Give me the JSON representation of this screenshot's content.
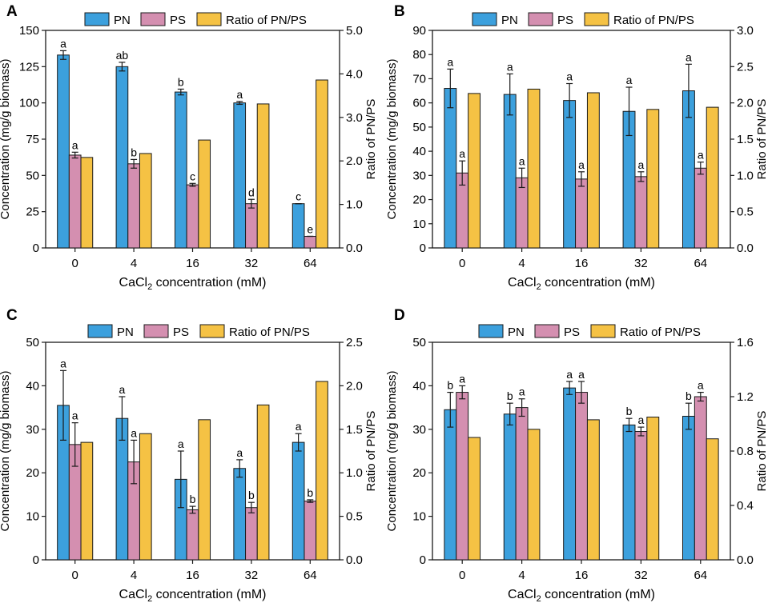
{
  "colors": {
    "PN": "#3ca0dd",
    "PS": "#d48fb0",
    "ratio": "#f5c244",
    "stroke": "#1a1a1a"
  },
  "chart_data": [
    {
      "type": "bar",
      "panel_label": "A",
      "legend": [
        "PN",
        "PS",
        "Ratio of PN/PS"
      ],
      "xlabel": {
        "main": "CaCl",
        "sub": "2",
        "rest": " concentration (mM)"
      },
      "ylabel": "Concentration (mg/g biomass)",
      "y2label": "Ratio of PN/PS",
      "categories": [
        "0",
        "4",
        "16",
        "32",
        "64"
      ],
      "ylim": [
        0,
        150
      ],
      "yticks": [
        "0",
        "25",
        "50",
        "75",
        "100",
        "125",
        "150"
      ],
      "y2lim": [
        0,
        5.0
      ],
      "y2ticks": [
        "0.0",
        "1.0",
        "2.0",
        "3.0",
        "4.0",
        "5.0"
      ],
      "series": [
        {
          "name": "PN",
          "values": [
            133,
            125,
            107.5,
            100,
            30.5
          ],
          "errors": [
            3,
            3,
            2,
            1,
            0
          ],
          "letters": [
            "a",
            "ab",
            "b",
            "a",
            "c"
          ]
        },
        {
          "name": "PS",
          "values": [
            64,
            58,
            43.5,
            30.5,
            8
          ],
          "errors": [
            2,
            3,
            1,
            3,
            0
          ],
          "letters": [
            "a",
            "b",
            "c",
            "d",
            "e"
          ]
        },
        {
          "name": "Ratio of PN/PS",
          "axis": "right",
          "values": [
            2.08,
            2.17,
            2.48,
            3.31,
            3.86
          ]
        }
      ]
    },
    {
      "type": "bar",
      "panel_label": "B",
      "legend": [
        "PN",
        "PS",
        "Ratio of PN/PS"
      ],
      "xlabel": {
        "main": "CaCl",
        "sub": "2",
        "rest": " concentration (mM)"
      },
      "ylabel": "Concentration (mg/g biomass)",
      "y2label": "Ratio of PN/PS",
      "categories": [
        "0",
        "4",
        "16",
        "32",
        "64"
      ],
      "ylim": [
        0,
        90
      ],
      "yticks": [
        "0",
        "10",
        "20",
        "30",
        "40",
        "50",
        "60",
        "70",
        "80",
        "90"
      ],
      "y2lim": [
        0,
        3.0
      ],
      "y2ticks": [
        "0.0",
        "0.5",
        "1.0",
        "1.5",
        "2.0",
        "2.5",
        "3.0"
      ],
      "series": [
        {
          "name": "PN",
          "values": [
            66,
            63.5,
            61,
            56.5,
            65
          ],
          "errors": [
            8,
            8.5,
            7,
            10,
            11
          ],
          "letters": [
            "a",
            "a",
            "a",
            "a",
            "a"
          ]
        },
        {
          "name": "PS",
          "values": [
            31,
            29,
            28.5,
            29.5,
            33
          ],
          "errors": [
            5,
            4,
            3,
            2,
            2.5
          ],
          "letters": [
            "a",
            "a",
            "a",
            "a",
            "a"
          ]
        },
        {
          "name": "Ratio of PN/PS",
          "axis": "right",
          "values": [
            2.13,
            2.19,
            2.14,
            1.91,
            1.94
          ]
        }
      ]
    },
    {
      "type": "bar",
      "panel_label": "C",
      "legend": [
        "PN",
        "PS",
        "Ratio of PN/PS"
      ],
      "xlabel": {
        "main": "CaCl",
        "sub": "2",
        "rest": " concentration (mM)"
      },
      "ylabel": "Concentration (mg/g biomass)",
      "y2label": "Ratio of PN/PS",
      "categories": [
        "0",
        "4",
        "16",
        "32",
        "64"
      ],
      "ylim": [
        0,
        50
      ],
      "yticks": [
        "0",
        "10",
        "20",
        "30",
        "40",
        "50"
      ],
      "y2lim": [
        0,
        2.5
      ],
      "y2ticks": [
        "0.0",
        "0.5",
        "1.0",
        "1.5",
        "2.0",
        "2.5"
      ],
      "series": [
        {
          "name": "PN",
          "values": [
            35.5,
            32.5,
            18.5,
            21,
            27
          ],
          "errors": [
            8,
            5,
            6.5,
            2,
            2
          ],
          "letters": [
            "a",
            "a",
            "a",
            "a",
            "a"
          ]
        },
        {
          "name": "PS",
          "values": [
            26.5,
            22.5,
            11.5,
            12,
            13.5
          ],
          "errors": [
            5,
            5,
            0.8,
            1.2,
            0.3
          ],
          "letters": [
            "a",
            "a",
            "b",
            "b",
            "b"
          ]
        },
        {
          "name": "Ratio of PN/PS",
          "axis": "right",
          "values": [
            1.35,
            1.45,
            1.61,
            1.78,
            2.05
          ]
        }
      ]
    },
    {
      "type": "bar",
      "panel_label": "D",
      "legend": [
        "PN",
        "PS",
        "Ratio of PN/PS"
      ],
      "xlabel": {
        "main": "CaCl",
        "sub": "2",
        "rest": " concentration (mM)"
      },
      "ylabel": "Concentration (mg/g biomass)",
      "y2label": "Ratio of PN/PS",
      "categories": [
        "0",
        "4",
        "16",
        "32",
        "64"
      ],
      "ylim": [
        0,
        50
      ],
      "yticks": [
        "0",
        "10",
        "20",
        "30",
        "40",
        "50"
      ],
      "y2lim": [
        0,
        1.6
      ],
      "y2ticks": [
        "0.0",
        "0.4",
        "0.8",
        "1.2",
        "1.6"
      ],
      "series": [
        {
          "name": "PN",
          "values": [
            34.5,
            33.5,
            39.5,
            31,
            33
          ],
          "errors": [
            4,
            2.5,
            1.5,
            1.5,
            3
          ],
          "letters": [
            "b",
            "b",
            "a",
            "b",
            "b"
          ]
        },
        {
          "name": "PS",
          "values": [
            38.5,
            35,
            38.5,
            29.5,
            37.5
          ],
          "errors": [
            1.5,
            2,
            2.5,
            1,
            1
          ],
          "letters": [
            "a",
            "a",
            "a",
            "a",
            "a"
          ]
        },
        {
          "name": "Ratio of PN/PS",
          "axis": "right",
          "values": [
            0.9,
            0.96,
            1.03,
            1.05,
            0.89
          ]
        }
      ]
    }
  ]
}
